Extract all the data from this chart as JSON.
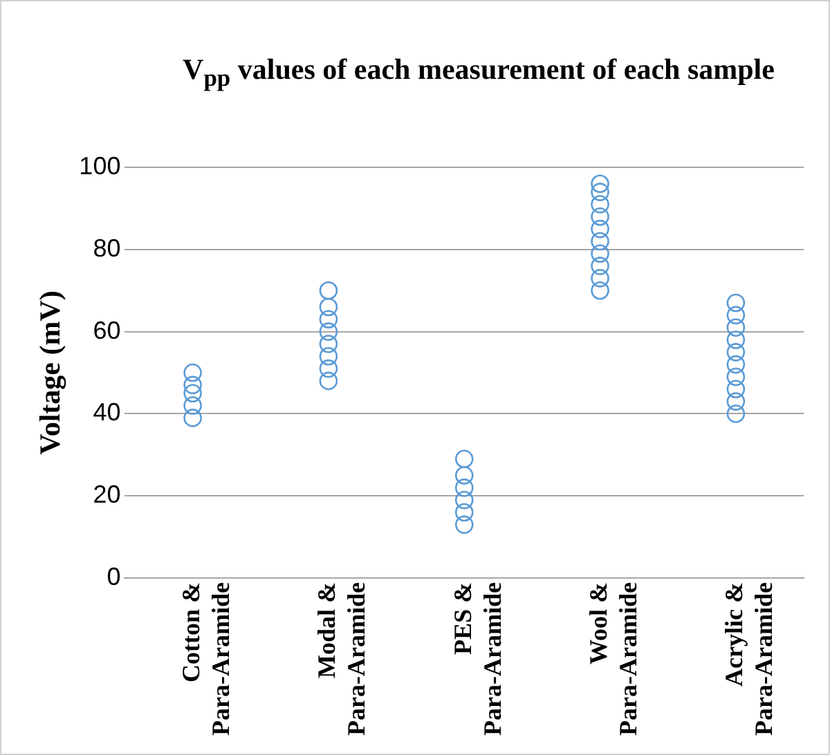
{
  "chart_data": {
    "type": "scatter",
    "title": "V$_{pp}$ values of  each measurement of each sample",
    "ylabel": "Voltage (mV)",
    "categories": [
      "Cotton & Para-Aramide",
      "Modal & Para-Aramide",
      "PES & Para-Aramide",
      "Wool & Para-Aramide",
      "Acrylic & Para-Aramide"
    ],
    "ylim": [
      0,
      100
    ],
    "yticks": [
      0,
      20,
      40,
      60,
      80,
      100
    ],
    "grid": "y",
    "marker": "circle",
    "series": [
      {
        "color": "#5b9bd5",
        "x": [
          "Cotton & Para-Aramide",
          "Cotton & Para-Aramide",
          "Cotton & Para-Aramide",
          "Cotton & Para-Aramide",
          "Cotton & Para-Aramide"
        ],
        "values": [
          39,
          42,
          45,
          47,
          50
        ]
      },
      {
        "color": "#5b9bd5",
        "x": [
          "Modal & Para-Aramide",
          "Modal & Para-Aramide",
          "Modal & Para-Aramide",
          "Modal & Para-Aramide",
          "Modal & Para-Aramide",
          "Modal & Para-Aramide",
          "Modal & Para-Aramide",
          "Modal & Para-Aramide"
        ],
        "values": [
          48,
          51,
          54,
          57,
          60,
          63,
          66,
          70
        ]
      },
      {
        "color": "#5b9bd5",
        "x": [
          "PES & Para-Aramide",
          "PES & Para-Aramide",
          "PES & Para-Aramide",
          "PES & Para-Aramide",
          "PES & Para-Aramide",
          "PES & Para-Aramide"
        ],
        "values": [
          13,
          16,
          19,
          22,
          25,
          29
        ]
      },
      {
        "color": "#5b9bd5",
        "x": [
          "Wool & Para-Aramide",
          "Wool & Para-Aramide",
          "Wool & Para-Aramide",
          "Wool & Para-Aramide",
          "Wool & Para-Aramide",
          "Wool & Para-Aramide",
          "Wool & Para-Aramide",
          "Wool & Para-Aramide",
          "Wool & Para-Aramide",
          "Wool & Para-Aramide"
        ],
        "values": [
          70,
          73,
          76,
          79,
          82,
          85,
          88,
          91,
          94,
          96
        ]
      },
      {
        "color": "#5b9bd5",
        "x": [
          "Acrylic & Para-Aramide",
          "Acrylic & Para-Aramide",
          "Acrylic & Para-Aramide",
          "Acrylic & Para-Aramide",
          "Acrylic & Para-Aramide",
          "Acrylic & Para-Aramide",
          "Acrylic & Para-Aramide",
          "Acrylic & Para-Aramide",
          "Acrylic & Para-Aramide",
          "Acrylic & Para-Aramide"
        ],
        "values": [
          40,
          43,
          46,
          49,
          52,
          55,
          58,
          61,
          64,
          67
        ]
      }
    ]
  }
}
